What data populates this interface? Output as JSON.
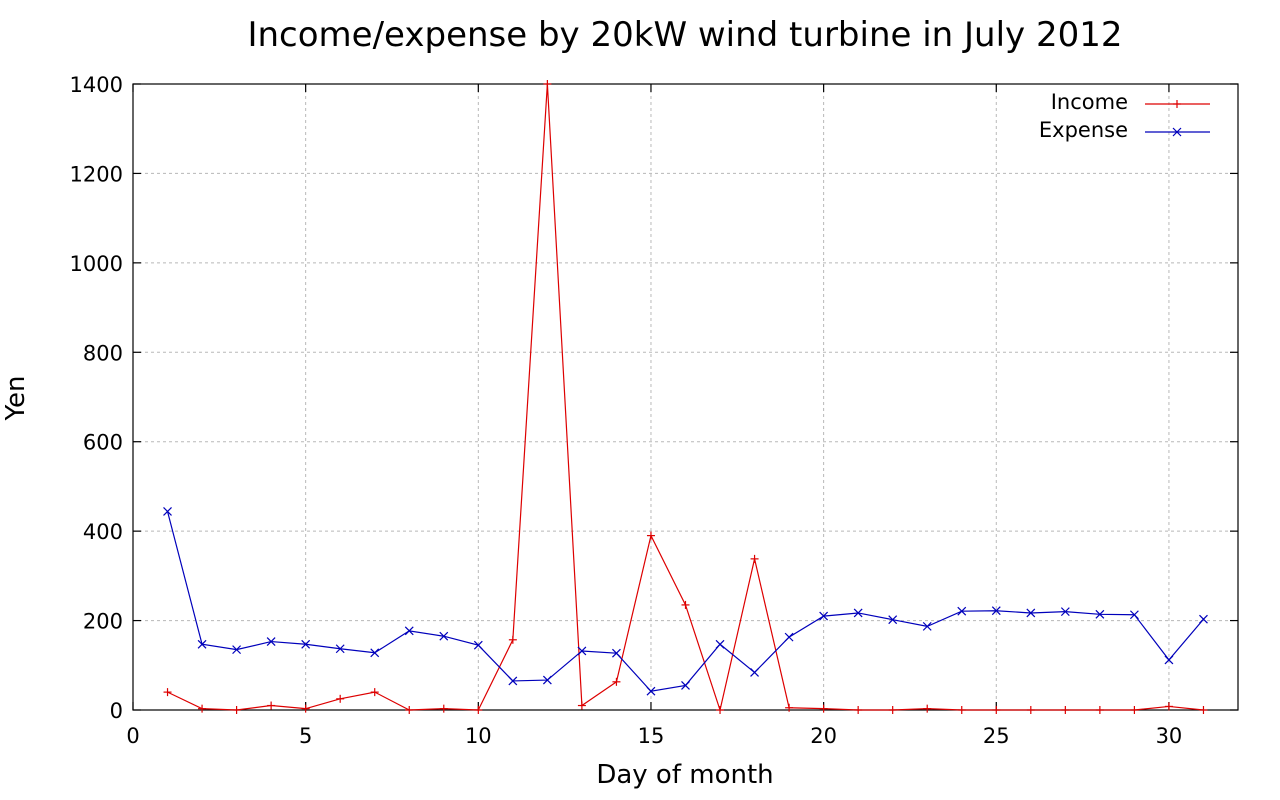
{
  "chart_data": {
    "type": "line",
    "title": "Income/expense by 20kW wind turbine in July 2012",
    "xlabel": "Day of month",
    "ylabel": "Yen",
    "xlim": [
      0,
      32
    ],
    "ylim": [
      0,
      1400
    ],
    "xticks": [
      0,
      5,
      10,
      15,
      20,
      25,
      30
    ],
    "yticks": [
      0,
      200,
      400,
      600,
      800,
      1000,
      1200,
      1400
    ],
    "grid": true,
    "legend_position": "top-right",
    "x": [
      1,
      2,
      3,
      4,
      5,
      6,
      7,
      8,
      9,
      10,
      11,
      12,
      13,
      14,
      15,
      16,
      17,
      18,
      19,
      20,
      21,
      22,
      23,
      24,
      25,
      26,
      27,
      28,
      29,
      30,
      31
    ],
    "series": [
      {
        "name": "Income",
        "color": "#dd0000",
        "marker": "plus",
        "values": [
          40,
          3,
          0,
          10,
          3,
          25,
          40,
          0,
          3,
          0,
          157,
          1400,
          10,
          63,
          390,
          235,
          0,
          338,
          5,
          3,
          0,
          0,
          3,
          0,
          0,
          0,
          0,
          0,
          0,
          8,
          0
        ]
      },
      {
        "name": "Expense",
        "color": "#0000bb",
        "marker": "cross",
        "values": [
          444,
          147,
          135,
          153,
          147,
          137,
          128,
          177,
          165,
          145,
          65,
          67,
          132,
          127,
          42,
          55,
          147,
          84,
          163,
          210,
          217,
          202,
          187,
          221,
          222,
          217,
          220,
          214,
          213,
          112,
          203
        ]
      }
    ]
  }
}
